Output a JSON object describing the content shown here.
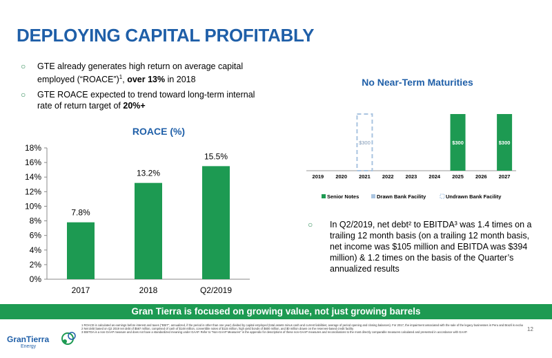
{
  "title": "DEPLOYING CAPITAL PROFITABLY",
  "bullets": [
    {
      "pre": "GTE already generates high return on average capital employed (“ROACE”)",
      "sup": "1",
      "mid": ", ",
      "bold": "over 13%",
      "post": " in 2018"
    },
    {
      "pre": "GTE ROACE expected to trend toward long-term internal rate of return target of ",
      "sup": "",
      "mid": "",
      "bold": "20%+",
      "post": ""
    }
  ],
  "note": "In Q2/2019, net debt² to EBITDA³ was 1.4 times on a trailing 12 month basis (on a trailing 12 month basis, net income was $105 million and EBITDA was $394 million) & 1.2 times on the basis of the Quarter’s annualized results",
  "banner": "Gran Tierra is focused on growing value, not just growing barrels",
  "logo": {
    "name": "GranTierra",
    "sub": "Energy"
  },
  "footnotes": [
    "1 ROACE is calculated as earnings before interest and taxes (“EBIT”, annualized, if the period is other than one year) divided by capital employed (total assets minus cash and current liabilities; average of period opening and closing balances). For 2017, the impairment associated with the sale of the legacy businesses in Peru and Brazil is excluded from EBIT.",
    "2 Net debt based on Q2 2019 net debt of $567 million, comprised of cash of $148 million, convertible notes of $115 million, high yield bonds of $600 million, and $0 million drawn on the reserves-based credit facility",
    "3 EBITDA is a non-GAAP measure and does not have a standardized meaning under GAAP. Refer to “Non-GAAP Measures” in the appendix for descriptions of these non-GAAP measures and reconciliations to the most directly comparable measures calculated and presented in accordance with GAAP."
  ],
  "page_number": "12",
  "colors": {
    "accent": "#1f5fa8",
    "green": "#1d9a52",
    "light_blue": "#a9c4e0"
  },
  "chart_data": [
    {
      "type": "bar",
      "title": "ROACE (%)",
      "categories": [
        "2017",
        "2018",
        "Q2/2019"
      ],
      "values": [
        7.8,
        13.2,
        15.5
      ],
      "data_labels": [
        "7.8%",
        "13.2%",
        "15.5%"
      ],
      "ylim": [
        0,
        18
      ],
      "yticks": [
        "0%",
        "2%",
        "4%",
        "6%",
        "8%",
        "10%",
        "12%",
        "14%",
        "16%",
        "18%"
      ],
      "ytick_values": [
        0,
        2,
        4,
        6,
        8,
        10,
        12,
        14,
        16,
        18
      ],
      "grid": false,
      "legend": "none"
    },
    {
      "type": "bar",
      "title": "No Near-Term Maturities",
      "categories": [
        "2019",
        "2020",
        "2021",
        "2022",
        "2023",
        "2024",
        "2025",
        "2026",
        "2027"
      ],
      "series": [
        {
          "name": "Senior Notes",
          "values": [
            0,
            0,
            0,
            0,
            0,
            0,
            300,
            0,
            300
          ],
          "color": "#1d9a52",
          "labels": [
            "",
            "",
            "",
            "",
            "",
            "",
            "$300",
            "",
            "$300"
          ]
        },
        {
          "name": "Drawn Bank Facility",
          "values": [
            0,
            0,
            0,
            0,
            0,
            0,
            0,
            0,
            0
          ],
          "color": "#a9c4e0",
          "labels": [
            "",
            "",
            "",
            "",
            "",
            "",
            "",
            "",
            ""
          ]
        },
        {
          "name": "Undrawn Bank Facility",
          "values": [
            0,
            0,
            300,
            0,
            0,
            0,
            0,
            0,
            0
          ],
          "color": "#a9c4e0",
          "style": "dashed",
          "labels": [
            "",
            "",
            "$300",
            "",
            "",
            "",
            "",
            "",
            ""
          ]
        }
      ],
      "ylim": [
        0,
        300
      ],
      "legend": "bottom"
    }
  ]
}
